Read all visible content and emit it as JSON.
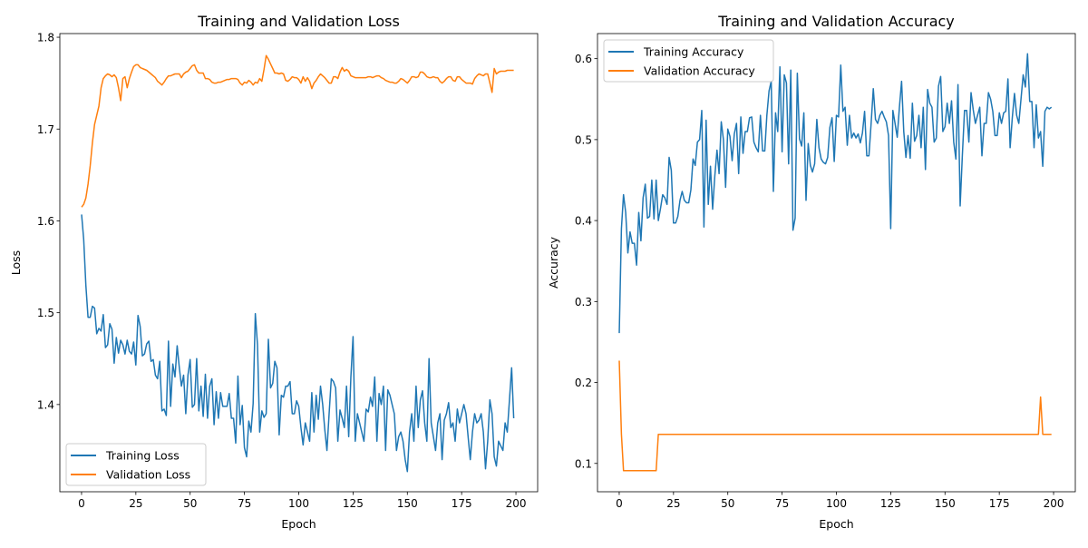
{
  "chart_data": [
    {
      "type": "line",
      "title": "Training and Validation Loss",
      "xlabel": "Epoch",
      "ylabel": "Loss",
      "xlim": [
        -10,
        210
      ],
      "ylim": [
        1.305,
        1.804
      ],
      "xticks": [
        0,
        25,
        50,
        75,
        100,
        125,
        150,
        175,
        200
      ],
      "yticks": [
        1.4,
        1.5,
        1.6,
        1.7,
        1.8
      ],
      "ytick_labels": [
        "1.4",
        "1.5",
        "1.6",
        "1.7",
        "1.8"
      ],
      "grid": false,
      "legend_position": "lower-left",
      "series": [
        {
          "name": "Training Loss",
          "color": "#1f77b4",
          "values": [
            1.607,
            1.58,
            1.53,
            1.495,
            1.495,
            1.507,
            1.505,
            1.477,
            1.483,
            1.48,
            1.498,
            1.462,
            1.465,
            1.488,
            1.482,
            1.445,
            1.473,
            1.456,
            1.47,
            1.465,
            1.455,
            1.47,
            1.458,
            1.455,
            1.468,
            1.443,
            1.497,
            1.485,
            1.453,
            1.455,
            1.466,
            1.469,
            1.447,
            1.449,
            1.432,
            1.428,
            1.447,
            1.393,
            1.395,
            1.388,
            1.469,
            1.398,
            1.444,
            1.43,
            1.464,
            1.44,
            1.42,
            1.432,
            1.39,
            1.432,
            1.449,
            1.397,
            1.4,
            1.45,
            1.393,
            1.42,
            1.387,
            1.433,
            1.385,
            1.42,
            1.428,
            1.378,
            1.414,
            1.385,
            1.413,
            1.398,
            1.398,
            1.398,
            1.412,
            1.385,
            1.385,
            1.358,
            1.431,
            1.378,
            1.399,
            1.353,
            1.343,
            1.382,
            1.37,
            1.401,
            1.499,
            1.465,
            1.37,
            1.393,
            1.386,
            1.39,
            1.471,
            1.418,
            1.423,
            1.447,
            1.44,
            1.367,
            1.41,
            1.408,
            1.42,
            1.42,
            1.425,
            1.39,
            1.39,
            1.404,
            1.398,
            1.375,
            1.356,
            1.38,
            1.37,
            1.36,
            1.413,
            1.37,
            1.41,
            1.384,
            1.42,
            1.4,
            1.373,
            1.35,
            1.39,
            1.428,
            1.425,
            1.418,
            1.36,
            1.394,
            1.385,
            1.375,
            1.42,
            1.365,
            1.43,
            1.474,
            1.36,
            1.39,
            1.38,
            1.37,
            1.36,
            1.395,
            1.392,
            1.408,
            1.398,
            1.43,
            1.36,
            1.412,
            1.4,
            1.42,
            1.35,
            1.416,
            1.41,
            1.4,
            1.39,
            1.35,
            1.365,
            1.37,
            1.36,
            1.34,
            1.327,
            1.37,
            1.39,
            1.36,
            1.42,
            1.375,
            1.405,
            1.415,
            1.38,
            1.36,
            1.45,
            1.38,
            1.365,
            1.35,
            1.38,
            1.39,
            1.34,
            1.383,
            1.39,
            1.402,
            1.375,
            1.38,
            1.36,
            1.395,
            1.38,
            1.39,
            1.4,
            1.39,
            1.365,
            1.34,
            1.37,
            1.39,
            1.38,
            1.383,
            1.39,
            1.37,
            1.33,
            1.36,
            1.405,
            1.39,
            1.343,
            1.333,
            1.36,
            1.355,
            1.35,
            1.38,
            1.37,
            1.405,
            1.44,
            1.385
          ]
        },
        {
          "name": "Validation Loss",
          "color": "#ff7f0e",
          "values": [
            1.615,
            1.618,
            1.625,
            1.64,
            1.66,
            1.685,
            1.705,
            1.715,
            1.725,
            1.745,
            1.755,
            1.758,
            1.76,
            1.759,
            1.757,
            1.759,
            1.756,
            1.745,
            1.731,
            1.755,
            1.757,
            1.745,
            1.755,
            1.762,
            1.768,
            1.77,
            1.77,
            1.767,
            1.766,
            1.765,
            1.764,
            1.762,
            1.76,
            1.758,
            1.756,
            1.752,
            1.75,
            1.748,
            1.751,
            1.755,
            1.758,
            1.758,
            1.759,
            1.76,
            1.76,
            1.76,
            1.756,
            1.76,
            1.762,
            1.763,
            1.766,
            1.769,
            1.77,
            1.764,
            1.761,
            1.761,
            1.761,
            1.755,
            1.755,
            1.754,
            1.751,
            1.75,
            1.75,
            1.751,
            1.751,
            1.752,
            1.753,
            1.754,
            1.754,
            1.755,
            1.755,
            1.755,
            1.754,
            1.75,
            1.748,
            1.751,
            1.75,
            1.753,
            1.751,
            1.748,
            1.751,
            1.75,
            1.755,
            1.752,
            1.765,
            1.78,
            1.776,
            1.771,
            1.766,
            1.761,
            1.761,
            1.76,
            1.761,
            1.76,
            1.753,
            1.752,
            1.754,
            1.757,
            1.756,
            1.756,
            1.754,
            1.75,
            1.757,
            1.752,
            1.756,
            1.752,
            1.744,
            1.75,
            1.753,
            1.757,
            1.76,
            1.758,
            1.756,
            1.753,
            1.75,
            1.75,
            1.757,
            1.757,
            1.755,
            1.762,
            1.767,
            1.763,
            1.765,
            1.763,
            1.758,
            1.757,
            1.756,
            1.756,
            1.756,
            1.756,
            1.756,
            1.756,
            1.757,
            1.757,
            1.756,
            1.757,
            1.758,
            1.758,
            1.756,
            1.755,
            1.753,
            1.752,
            1.751,
            1.751,
            1.75,
            1.75,
            1.752,
            1.755,
            1.754,
            1.752,
            1.75,
            1.753,
            1.757,
            1.757,
            1.756,
            1.757,
            1.762,
            1.762,
            1.76,
            1.757,
            1.756,
            1.756,
            1.757,
            1.756,
            1.756,
            1.752,
            1.75,
            1.752,
            1.755,
            1.757,
            1.757,
            1.753,
            1.752,
            1.757,
            1.757,
            1.754,
            1.752,
            1.75,
            1.75,
            1.75,
            1.749,
            1.755,
            1.758,
            1.76,
            1.759,
            1.758,
            1.76,
            1.76,
            1.75,
            1.74,
            1.766,
            1.76,
            1.762,
            1.763,
            1.763,
            1.763,
            1.764,
            1.764,
            1.764,
            1.764
          ]
        }
      ]
    },
    {
      "type": "line",
      "title": "Training and Validation Accuracy",
      "xlabel": "Epoch",
      "ylabel": "Accuracy",
      "xlim": [
        -10,
        210
      ],
      "ylim": [
        0.065,
        0.631
      ],
      "xticks": [
        0,
        25,
        50,
        75,
        100,
        125,
        150,
        175,
        200
      ],
      "yticks": [
        0.1,
        0.2,
        0.3,
        0.4,
        0.5,
        0.6
      ],
      "ytick_labels": [
        "0.1",
        "0.2",
        "0.3",
        "0.4",
        "0.5",
        "0.6"
      ],
      "grid": false,
      "legend_position": "upper-left",
      "series": [
        {
          "name": "Training Accuracy",
          "color": "#1f77b4",
          "values": [
            0.261,
            0.39,
            0.432,
            0.41,
            0.36,
            0.386,
            0.372,
            0.372,
            0.345,
            0.41,
            0.375,
            0.428,
            0.445,
            0.403,
            0.405,
            0.45,
            0.402,
            0.45,
            0.4,
            0.415,
            0.432,
            0.428,
            0.42,
            0.478,
            0.462,
            0.397,
            0.397,
            0.405,
            0.425,
            0.436,
            0.425,
            0.422,
            0.422,
            0.438,
            0.476,
            0.468,
            0.497,
            0.5,
            0.536,
            0.392,
            0.524,
            0.42,
            0.467,
            0.414,
            0.455,
            0.487,
            0.458,
            0.522,
            0.5,
            0.441,
            0.513,
            0.504,
            0.474,
            0.507,
            0.52,
            0.458,
            0.528,
            0.483,
            0.51,
            0.51,
            0.527,
            0.528,
            0.497,
            0.49,
            0.485,
            0.53,
            0.486,
            0.486,
            0.53,
            0.56,
            0.572,
            0.436,
            0.533,
            0.51,
            0.59,
            0.485,
            0.58,
            0.57,
            0.47,
            0.586,
            0.388,
            0.403,
            0.582,
            0.501,
            0.492,
            0.533,
            0.425,
            0.495,
            0.468,
            0.46,
            0.47,
            0.525,
            0.49,
            0.476,
            0.472,
            0.47,
            0.478,
            0.515,
            0.527,
            0.473,
            0.53,
            0.528,
            0.592,
            0.535,
            0.54,
            0.493,
            0.53,
            0.502,
            0.508,
            0.502,
            0.507,
            0.496,
            0.508,
            0.535,
            0.48,
            0.48,
            0.52,
            0.563,
            0.525,
            0.52,
            0.53,
            0.535,
            0.528,
            0.522,
            0.505,
            0.39,
            0.536,
            0.52,
            0.503,
            0.54,
            0.572,
            0.51,
            0.478,
            0.505,
            0.477,
            0.545,
            0.498,
            0.505,
            0.53,
            0.49,
            0.54,
            0.463,
            0.562,
            0.545,
            0.54,
            0.497,
            0.502,
            0.566,
            0.578,
            0.51,
            0.516,
            0.545,
            0.52,
            0.548,
            0.497,
            0.476,
            0.568,
            0.418,
            0.48,
            0.536,
            0.536,
            0.497,
            0.558,
            0.537,
            0.52,
            0.53,
            0.54,
            0.48,
            0.52,
            0.52,
            0.558,
            0.55,
            0.535,
            0.505,
            0.505,
            0.533,
            0.52,
            0.533,
            0.535,
            0.575,
            0.49,
            0.527,
            0.557,
            0.53,
            0.52,
            0.55,
            0.58,
            0.565,
            0.606,
            0.547,
            0.547,
            0.49,
            0.543,
            0.502,
            0.51,
            0.467,
            0.535,
            0.54,
            0.538,
            0.54
          ]
        },
        {
          "name": "Validation Accuracy",
          "color": "#ff7f0e",
          "values": [
            0.227,
            0.136,
            0.091,
            0.091,
            0.091,
            0.091,
            0.091,
            0.091,
            0.091,
            0.091,
            0.091,
            0.091,
            0.091,
            0.091,
            0.091,
            0.091,
            0.091,
            0.091,
            0.136,
            0.136,
            0.136,
            0.136,
            0.136,
            0.136,
            0.136,
            0.136,
            0.136,
            0.136,
            0.136,
            0.136,
            0.136,
            0.136,
            0.136,
            0.136,
            0.136,
            0.136,
            0.136,
            0.136,
            0.136,
            0.136,
            0.136,
            0.136,
            0.136,
            0.136,
            0.136,
            0.136,
            0.136,
            0.136,
            0.136,
            0.136,
            0.136,
            0.136,
            0.136,
            0.136,
            0.136,
            0.136,
            0.136,
            0.136,
            0.136,
            0.136,
            0.136,
            0.136,
            0.136,
            0.136,
            0.136,
            0.136,
            0.136,
            0.136,
            0.136,
            0.136,
            0.136,
            0.136,
            0.136,
            0.136,
            0.136,
            0.136,
            0.136,
            0.136,
            0.136,
            0.136,
            0.136,
            0.136,
            0.136,
            0.136,
            0.136,
            0.136,
            0.136,
            0.136,
            0.136,
            0.136,
            0.136,
            0.136,
            0.136,
            0.136,
            0.136,
            0.136,
            0.136,
            0.136,
            0.136,
            0.136,
            0.136,
            0.136,
            0.136,
            0.136,
            0.136,
            0.136,
            0.136,
            0.136,
            0.136,
            0.136,
            0.136,
            0.136,
            0.136,
            0.136,
            0.136,
            0.136,
            0.136,
            0.136,
            0.136,
            0.136,
            0.136,
            0.136,
            0.136,
            0.136,
            0.136,
            0.136,
            0.136,
            0.136,
            0.136,
            0.136,
            0.136,
            0.136,
            0.136,
            0.136,
            0.136,
            0.136,
            0.136,
            0.136,
            0.136,
            0.136,
            0.136,
            0.136,
            0.136,
            0.136,
            0.136,
            0.136,
            0.136,
            0.136,
            0.136,
            0.136,
            0.136,
            0.136,
            0.136,
            0.136,
            0.136,
            0.136,
            0.136,
            0.136,
            0.136,
            0.136,
            0.136,
            0.136,
            0.136,
            0.136,
            0.136,
            0.136,
            0.136,
            0.136,
            0.136,
            0.136,
            0.136,
            0.136,
            0.136,
            0.136,
            0.136,
            0.136,
            0.136,
            0.136,
            0.136,
            0.136,
            0.136,
            0.136,
            0.136,
            0.136,
            0.136,
            0.136,
            0.136,
            0.136,
            0.136,
            0.136,
            0.136,
            0.136,
            0.136,
            0.136,
            0.182,
            0.136,
            0.136,
            0.136,
            0.136,
            0.136
          ]
        }
      ]
    }
  ]
}
